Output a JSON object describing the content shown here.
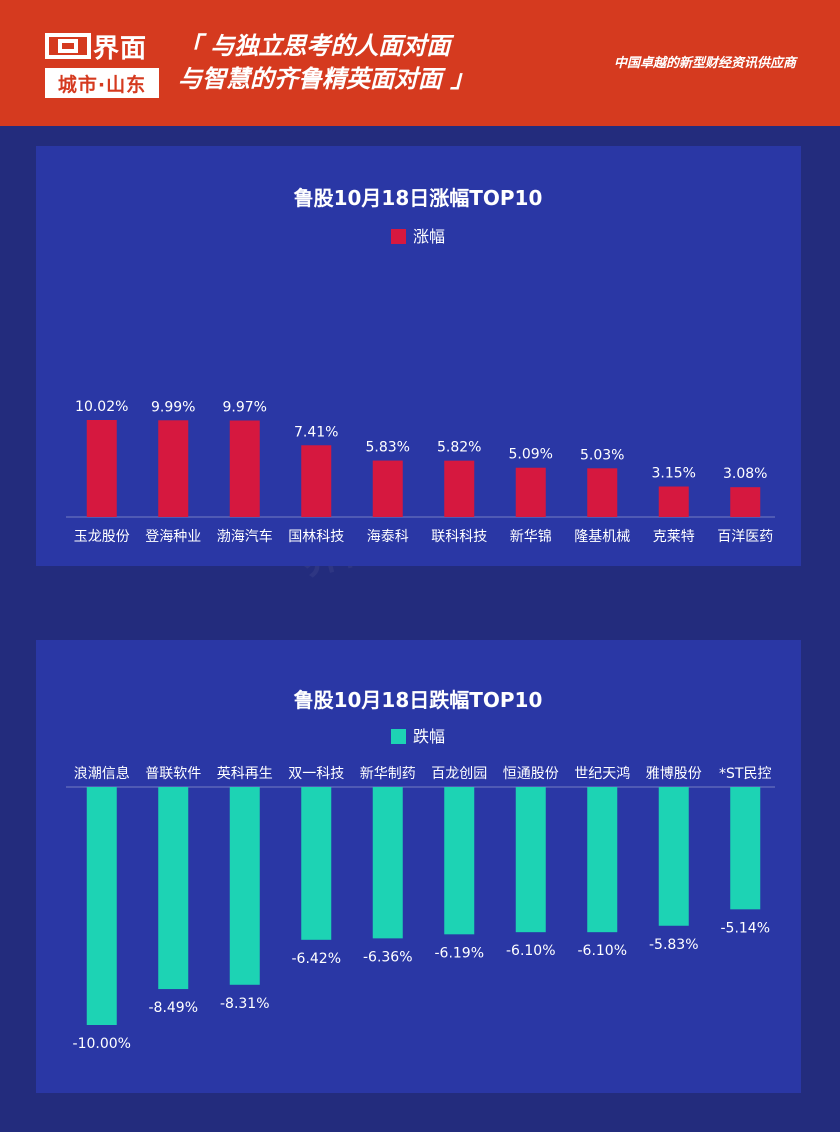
{
  "header": {
    "logo_text": "界面",
    "logo_sub": "城市·山东",
    "slogan_line1": "「 与独立思考的人面对面",
    "slogan_line2": "与智慧的齐鲁精英面对面 」",
    "tagline": "中国卓越的新型财经资讯供应商"
  },
  "colors": {
    "header_bg": "#d53a1f",
    "page_bg": "#232c7d",
    "panel_bg": "#2a37a5",
    "gain": "#d6183f",
    "loss": "#1dd3b4"
  },
  "chart_data": [
    {
      "type": "bar",
      "title": "鲁股10月18日涨幅TOP10",
      "legend": "top",
      "categories": [
        "玉龙股份",
        "登海种业",
        "渤海汽车",
        "国林科技",
        "海泰科",
        "联科科技",
        "新华锦",
        "隆基机械",
        "克莱特",
        "百洋医药"
      ],
      "series": [
        {
          "name": "涨幅",
          "color": "#d6183f",
          "values": [
            10.02,
            9.99,
            9.97,
            7.41,
            5.83,
            5.82,
            5.09,
            5.03,
            3.15,
            3.08
          ],
          "labels": [
            "10.02%",
            "9.99%",
            "9.97%",
            "7.41%",
            "5.83%",
            "5.82%",
            "5.09%",
            "5.03%",
            "3.15%",
            "3.08%"
          ]
        }
      ],
      "ylim": [
        0,
        10.02
      ]
    },
    {
      "type": "bar",
      "title": "鲁股10月18日跌幅TOP10",
      "legend": "top",
      "categories": [
        "浪潮信息",
        "普联软件",
        "英科再生",
        "双一科技",
        "新华制药",
        "百龙创园",
        "恒通股份",
        "世纪天鸿",
        "雅博股份",
        "*ST民控"
      ],
      "series": [
        {
          "name": "跌幅",
          "color": "#1dd3b4",
          "values": [
            -10.0,
            -8.49,
            -8.31,
            -6.42,
            -6.36,
            -6.19,
            -6.1,
            -6.1,
            -5.83,
            -5.14
          ],
          "labels": [
            "-10.00%",
            "-8.49%",
            "-8.31%",
            "-6.42%",
            "-6.36%",
            "-6.19%",
            "-6.10%",
            "-6.10%",
            "-5.83%",
            "-5.14%"
          ]
        }
      ],
      "ylim": [
        -10.0,
        0
      ]
    }
  ]
}
